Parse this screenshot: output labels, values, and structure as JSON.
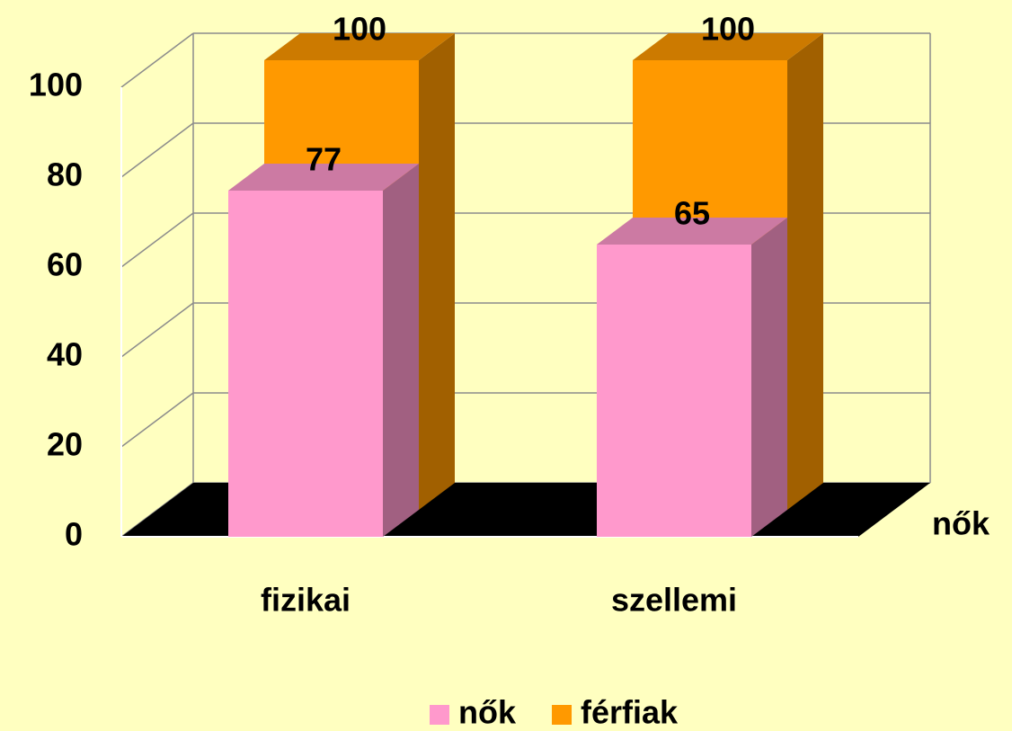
{
  "chart_data": {
    "type": "bar3d",
    "categories": [
      "fizikai",
      "szellemi"
    ],
    "series": [
      {
        "name": "nők",
        "color": "#ff99cc",
        "values": [
          77,
          65
        ]
      },
      {
        "name": "férfiak",
        "color": "#ff9900",
        "values": [
          100,
          100
        ]
      }
    ],
    "ylim": [
      0,
      100
    ],
    "yticks": [
      0,
      20,
      40,
      60,
      80,
      100
    ],
    "grid": true,
    "legend": "bottom"
  }
}
